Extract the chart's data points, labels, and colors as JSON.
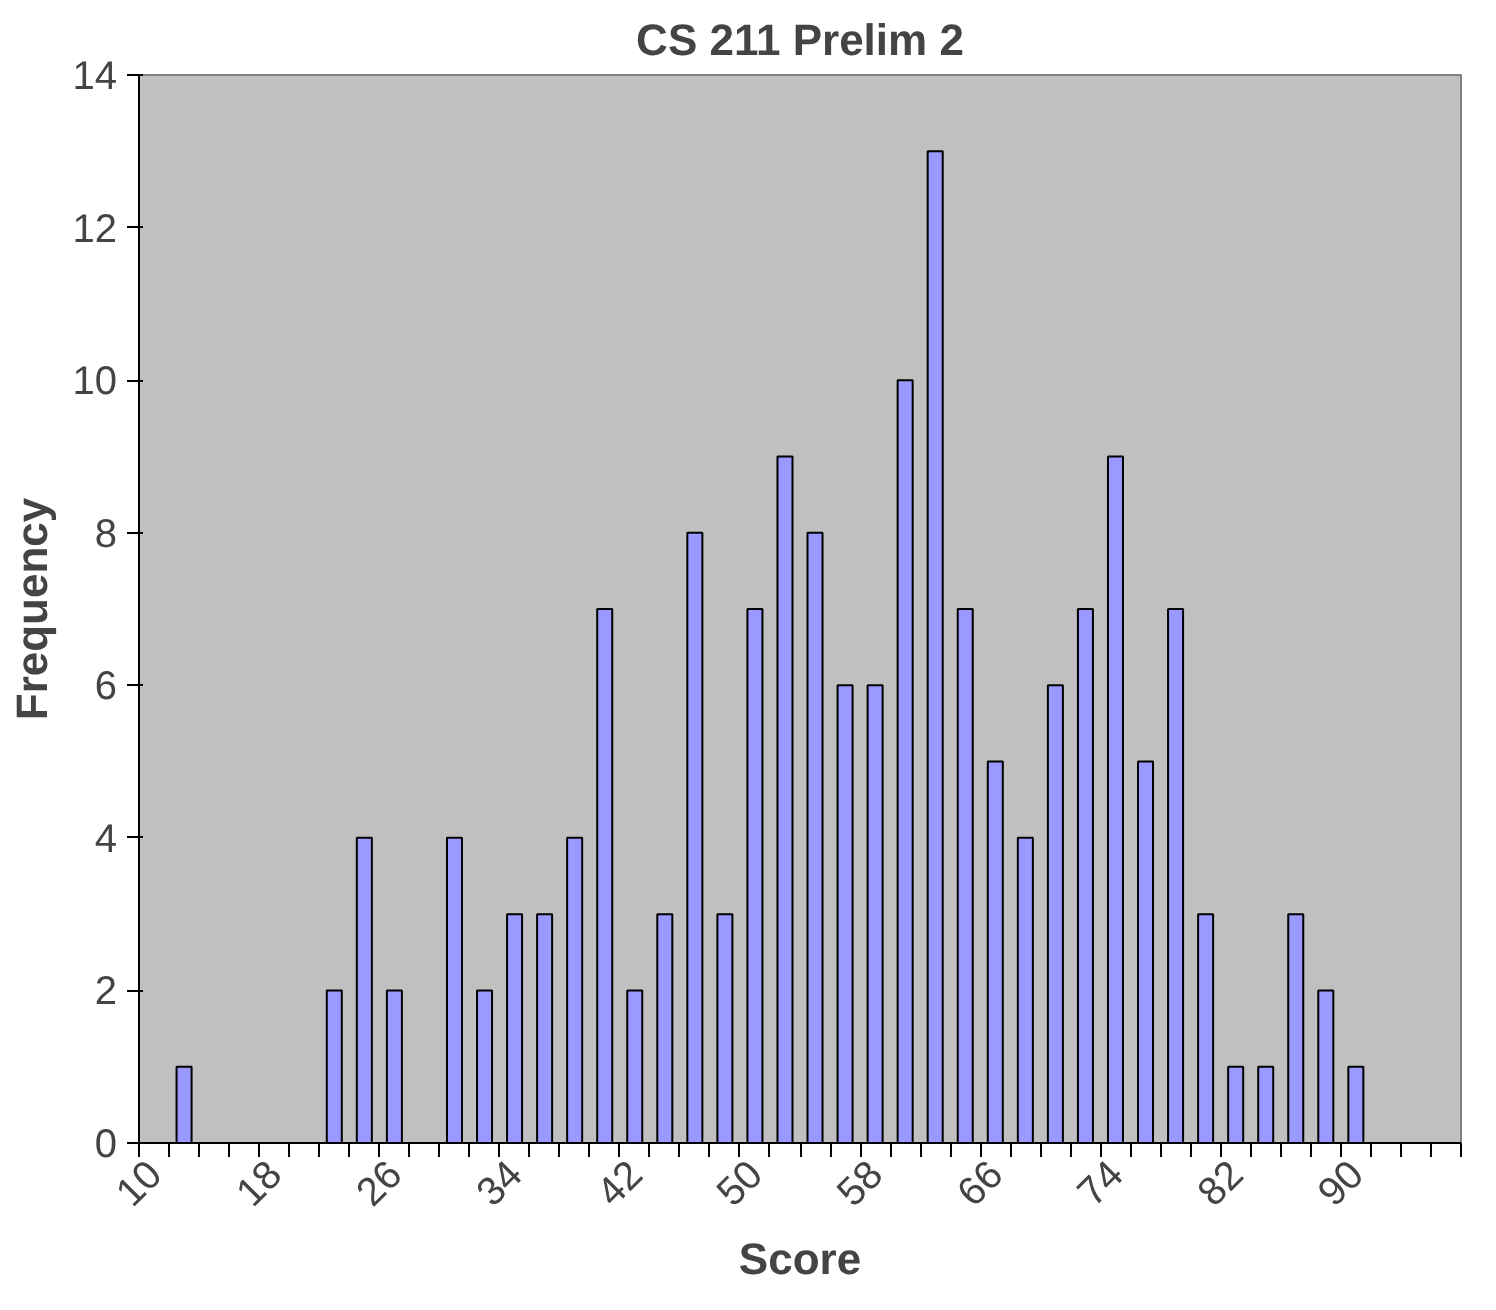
{
  "chart_data": {
    "type": "bar",
    "title": "CS 211 Prelim 2",
    "xlabel": "Score",
    "ylabel": "Frequency",
    "categories": [
      "10",
      null,
      null,
      null,
      "18",
      null,
      null,
      null,
      "26",
      null,
      null,
      null,
      "34",
      null,
      null,
      null,
      "42",
      null,
      null,
      null,
      "50",
      null,
      null,
      null,
      "58",
      null,
      null,
      null,
      "66",
      null,
      null,
      null,
      "74",
      null,
      null,
      null,
      "82",
      null,
      null,
      null,
      "90",
      null,
      null,
      null
    ],
    "values": [
      0,
      1,
      0,
      0,
      0,
      0,
      2,
      4,
      2,
      0,
      4,
      2,
      3,
      3,
      4,
      7,
      2,
      3,
      8,
      3,
      7,
      9,
      8,
      6,
      6,
      10,
      13,
      7,
      5,
      4,
      6,
      7,
      9,
      5,
      7,
      3,
      1,
      1,
      3,
      2,
      1,
      0,
      0,
      0
    ],
    "color": "#9999ff",
    "ylim": [
      0,
      14
    ],
    "yticks": [
      0,
      2,
      4,
      6,
      8,
      10,
      12,
      14
    ],
    "grid": false
  }
}
